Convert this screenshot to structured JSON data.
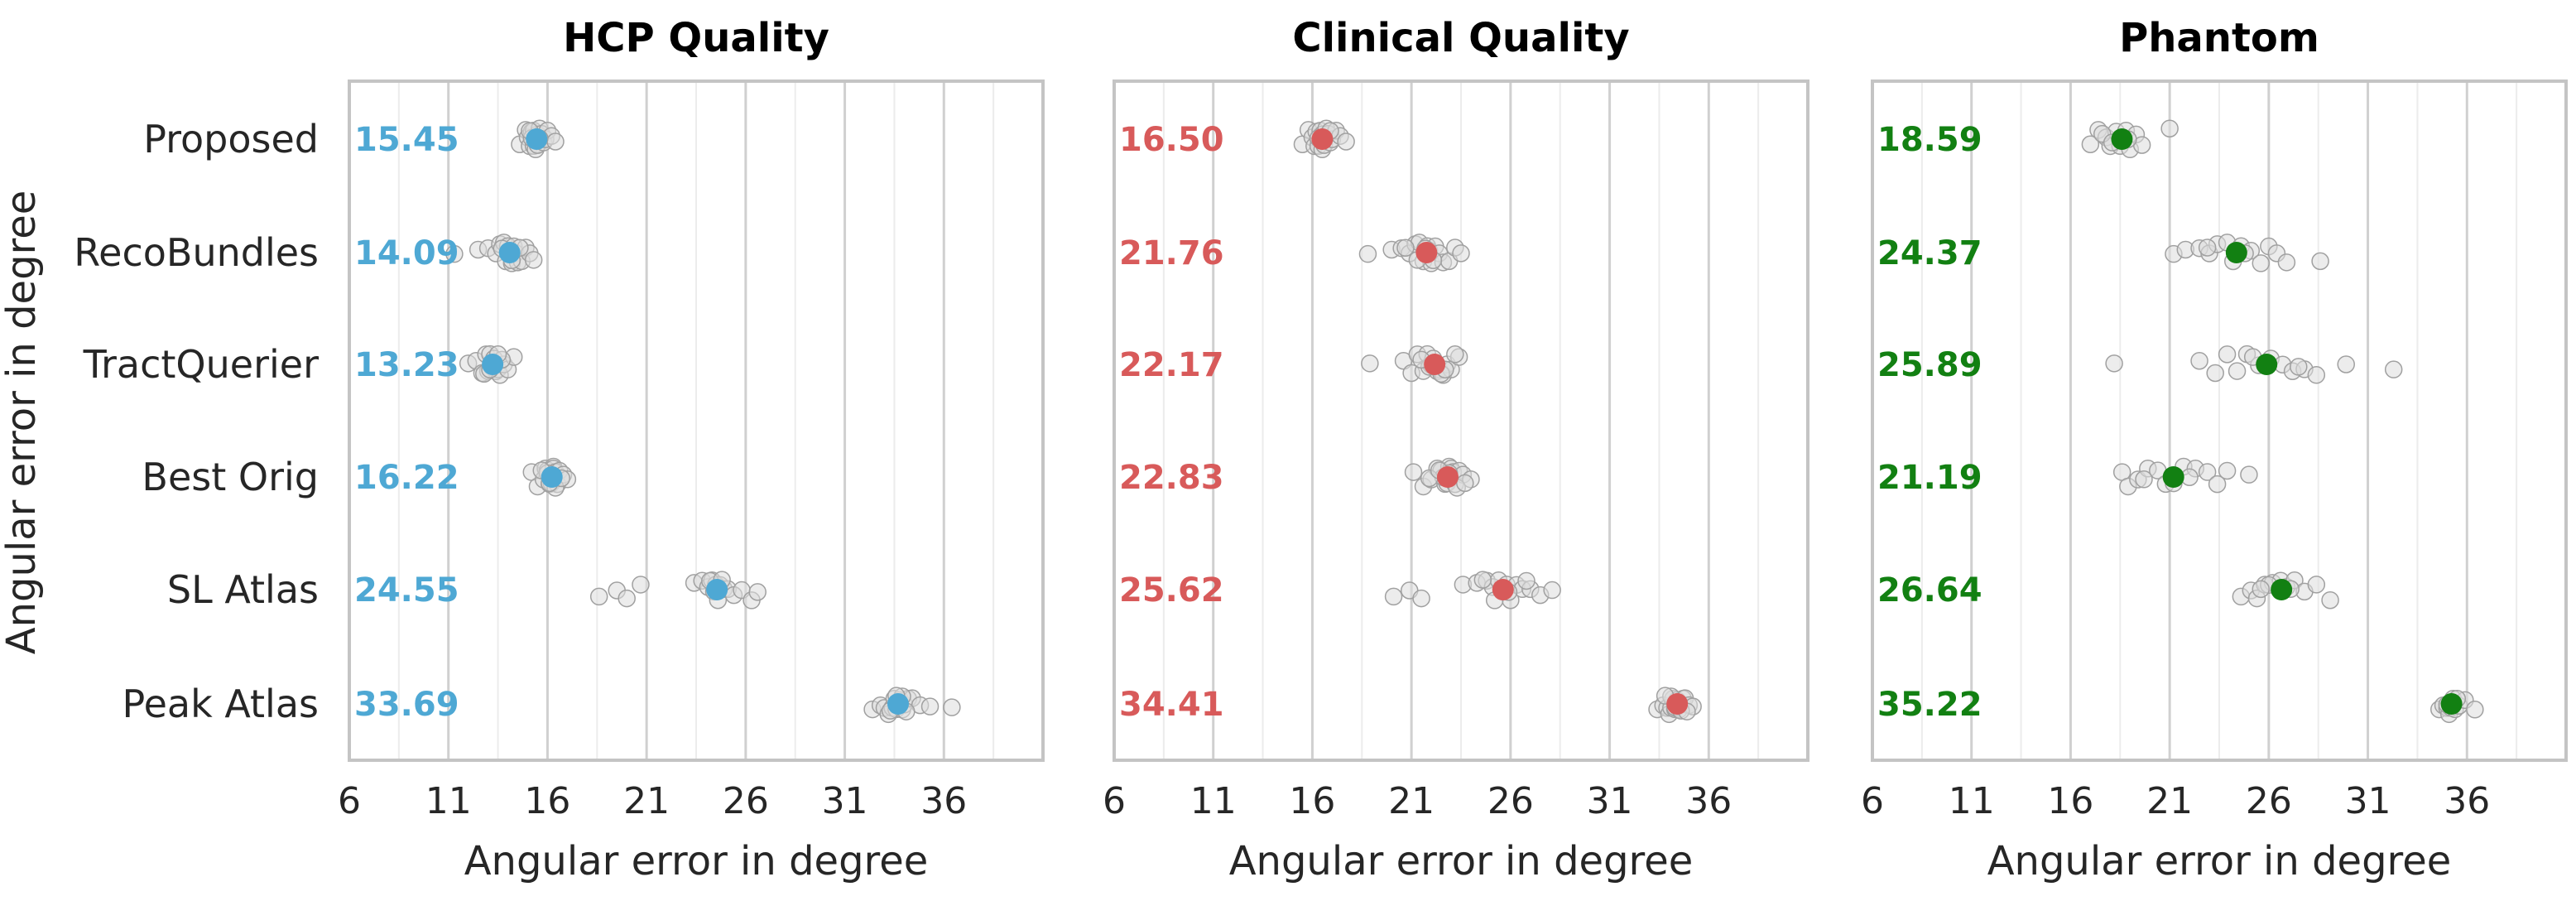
{
  "figure": {
    "ylabel": "Angular error in degree",
    "categories": [
      "Proposed",
      "RecoBundles",
      "TractQuerier",
      "Best Orig",
      "SL Atlas",
      "Peak Atlas"
    ]
  },
  "chart_data": [
    {
      "type": "scatter",
      "title": "HCP Quality",
      "xlabel": "Angular error in degree",
      "ylabel": "Angular error in degree",
      "xlim": [
        6,
        41
      ],
      "xticks": [
        6,
        11,
        16,
        21,
        26,
        31,
        36
      ],
      "grid": true,
      "color": "#4ea8d4",
      "categories": [
        "Proposed",
        "RecoBundles",
        "TractQuerier",
        "Best Orig",
        "SL Atlas",
        "Peak Atlas"
      ],
      "means": [
        15.45,
        14.09,
        13.23,
        16.22,
        24.55,
        33.69
      ],
      "mean_labels": [
        "15.45",
        "14.09",
        "13.23",
        "16.22",
        "24.55",
        "33.69"
      ],
      "points": [
        [
          14.6,
          14.9,
          15.0,
          15.1,
          15.2,
          15.3,
          15.3,
          15.4,
          15.5,
          15.5,
          15.6,
          15.7,
          15.8,
          15.9,
          16.0,
          16.2,
          16.4,
          15.2,
          15.6,
          15.1
        ],
        [
          11.3,
          12.5,
          13.0,
          13.4,
          13.6,
          13.8,
          13.9,
          14.0,
          14.1,
          14.2,
          14.3,
          14.4,
          14.5,
          14.7,
          14.9,
          15.1,
          15.3,
          13.7,
          14.2,
          14.6
        ],
        [
          12.0,
          12.4,
          12.7,
          12.9,
          13.0,
          13.1,
          13.2,
          13.3,
          13.3,
          13.4,
          13.5,
          13.6,
          13.8,
          14.0,
          14.3,
          13.2,
          12.8,
          13.7,
          13.1,
          13.5
        ],
        [
          15.2,
          15.5,
          15.8,
          15.9,
          16.0,
          16.1,
          16.2,
          16.3,
          16.3,
          16.4,
          16.5,
          16.6,
          16.8,
          17.0,
          16.2,
          16.0,
          16.4,
          16.7,
          15.7,
          16.1
        ],
        [
          18.6,
          19.5,
          20.0,
          20.7,
          23.4,
          23.8,
          24.1,
          24.3,
          24.4,
          24.5,
          24.6,
          24.7,
          24.9,
          25.1,
          25.4,
          25.8,
          26.3,
          26.6,
          24.2,
          24.8
        ],
        [
          32.4,
          32.8,
          33.0,
          33.2,
          33.4,
          33.5,
          33.6,
          33.7,
          33.8,
          33.9,
          34.0,
          34.2,
          34.4,
          34.8,
          35.3,
          36.4,
          33.3,
          33.9,
          34.1,
          33.6
        ]
      ]
    },
    {
      "type": "scatter",
      "title": "Clinical Quality",
      "xlabel": "Angular error in degree",
      "xlim": [
        6,
        41
      ],
      "xticks": [
        6,
        11,
        16,
        21,
        26,
        31,
        36
      ],
      "grid": true,
      "color": "#d85a5a",
      "categories": [
        "Proposed",
        "RecoBundles",
        "TractQuerier",
        "Best Orig",
        "SL Atlas",
        "Peak Atlas"
      ],
      "means": [
        16.5,
        21.76,
        22.17,
        22.83,
        25.62,
        34.41
      ],
      "mean_labels": [
        "16.50",
        "21.76",
        "22.17",
        "22.83",
        "25.62",
        "34.41"
      ],
      "points": [
        [
          15.5,
          15.8,
          16.0,
          16.1,
          16.2,
          16.3,
          16.4,
          16.5,
          16.5,
          16.6,
          16.7,
          16.8,
          16.9,
          17.0,
          17.2,
          17.4,
          17.7,
          16.3,
          16.6,
          16.9
        ],
        [
          18.8,
          20.0,
          20.5,
          20.9,
          21.2,
          21.4,
          21.6,
          21.8,
          21.9,
          22.0,
          22.2,
          22.4,
          22.6,
          22.9,
          23.2,
          23.5,
          21.3,
          21.7,
          22.1,
          20.7
        ],
        [
          18.9,
          20.6,
          21.0,
          21.3,
          21.6,
          21.8,
          22.0,
          22.1,
          22.2,
          22.3,
          22.4,
          22.6,
          22.8,
          23.0,
          23.4,
          21.9,
          22.5,
          21.5,
          22.7,
          23.2
        ],
        [
          21.1,
          21.6,
          22.0,
          22.3,
          22.5,
          22.7,
          22.8,
          22.9,
          23.0,
          23.1,
          23.2,
          23.4,
          23.6,
          24.0,
          22.6,
          22.9,
          23.3,
          21.9,
          22.4,
          23.7
        ],
        [
          20.1,
          20.9,
          21.5,
          23.6,
          24.3,
          24.8,
          25.1,
          25.4,
          25.6,
          25.8,
          26.0,
          26.3,
          26.6,
          27.0,
          27.5,
          28.1,
          25.2,
          25.9,
          26.8,
          24.6
        ],
        [
          33.4,
          33.7,
          33.9,
          34.0,
          34.1,
          34.2,
          34.3,
          34.4,
          34.4,
          34.5,
          34.6,
          34.7,
          34.8,
          35.0,
          35.2,
          34.3,
          34.6,
          34.1,
          34.9,
          33.8
        ]
      ]
    },
    {
      "type": "scatter",
      "title": "Phantom",
      "xlabel": "Angular error in degree",
      "xlim": [
        6,
        41
      ],
      "xticks": [
        6,
        11,
        16,
        21,
        26,
        31,
        36
      ],
      "grid": true,
      "color": "#128012",
      "categories": [
        "Proposed",
        "RecoBundles",
        "TractQuerier",
        "Best Orig",
        "SL Atlas",
        "Peak Atlas"
      ],
      "means": [
        18.59,
        24.37,
        25.89,
        21.19,
        26.64,
        35.22
      ],
      "mean_labels": [
        "18.59",
        "24.37",
        "25.89",
        "21.19",
        "26.64",
        "35.22"
      ],
      "points": [
        [
          17.0,
          17.4,
          17.8,
          18.0,
          18.3,
          18.5,
          18.8,
          19.0,
          19.3,
          19.6,
          21.0,
          17.6,
          18.1,
          18.9
        ],
        [
          21.2,
          21.8,
          22.5,
          23.0,
          23.4,
          23.9,
          24.2,
          24.6,
          25.1,
          25.6,
          26.0,
          26.4,
          26.9,
          28.6,
          22.9,
          24.8
        ],
        [
          18.2,
          22.5,
          23.3,
          23.9,
          24.4,
          24.9,
          25.5,
          26.1,
          26.7,
          27.2,
          27.8,
          28.4,
          29.9,
          32.3,
          25.2,
          27.5
        ],
        [
          18.6,
          18.9,
          19.4,
          19.9,
          20.4,
          20.8,
          21.2,
          21.7,
          22.3,
          22.9,
          23.4,
          23.9,
          25.0,
          19.7,
          22.0
        ],
        [
          24.6,
          25.1,
          25.4,
          25.8,
          26.2,
          26.6,
          26.9,
          27.3,
          27.8,
          28.4,
          29.1,
          26.0,
          27.1,
          25.6
        ],
        [
          34.6,
          34.8,
          35.0,
          35.1,
          35.2,
          35.3,
          35.4,
          35.6,
          35.9,
          36.4,
          35.0,
          35.5
        ]
      ]
    }
  ]
}
